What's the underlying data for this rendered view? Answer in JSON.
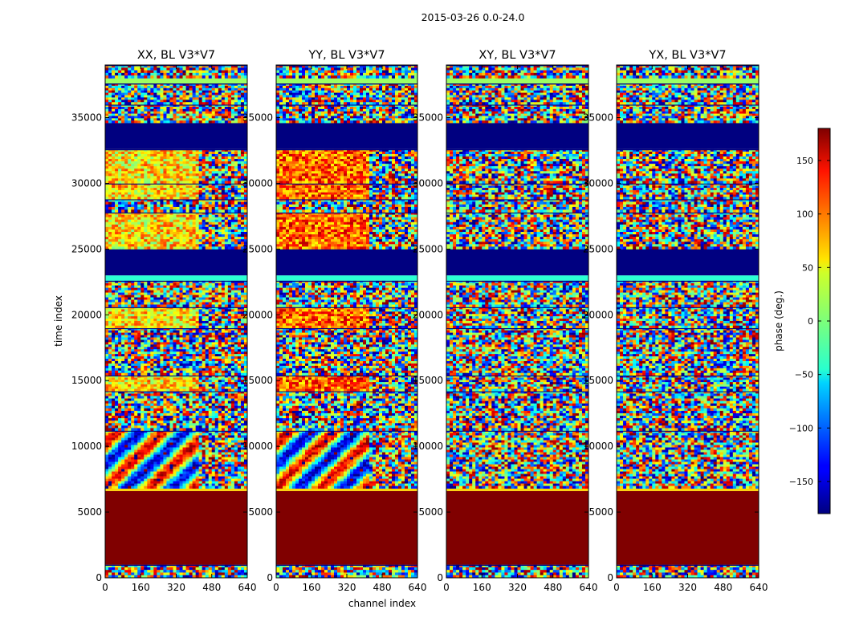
{
  "figure": {
    "title": "2015-03-26 0.0-24.0"
  },
  "chart_data": {
    "type": "heatmap",
    "suptitle": "2015-03-26 0.0-24.0",
    "xlabel": "channel index",
    "ylabel": "time index",
    "xlim": [
      0,
      640
    ],
    "ylim": [
      0,
      39000
    ],
    "xticks": [
      0,
      160,
      320,
      480,
      640
    ],
    "yticks": [
      0,
      5000,
      10000,
      15000,
      20000,
      25000,
      30000,
      35000
    ],
    "xtick_labels": [
      "0",
      "160",
      "320",
      "480",
      "640"
    ],
    "ytick_labels": [
      "0",
      "5000",
      "10000",
      "15000",
      "20000",
      "25000",
      "30000",
      "35000"
    ],
    "ytick_labels_inner": [
      "0",
      "5000",
      "10000",
      "15000",
      "20000",
      "25000",
      "30000",
      "35000"
    ],
    "panels": [
      {
        "title": "XX, BL V3*V7",
        "polarization": "XX",
        "baseline": "V3*V7"
      },
      {
        "title": "YY, BL V3*V7",
        "polarization": "YY",
        "baseline": "V3*V7"
      },
      {
        "title": "XY, BL V3*V7",
        "polarization": "XY",
        "baseline": "V3*V7"
      },
      {
        "title": "YX, BL V3*V7",
        "polarization": "YX",
        "baseline": "V3*V7"
      }
    ],
    "colorbar": {
      "label": "phase (deg.)",
      "range": [
        -180,
        180
      ],
      "colormap": "jet",
      "ticks": [
        -150,
        -100,
        -50,
        0,
        50,
        100,
        150
      ],
      "tick_labels": [
        "−150",
        "−100",
        "−50",
        "0",
        "50",
        "100",
        "150"
      ]
    },
    "bands": [
      {
        "t0": 0,
        "t1": 1000,
        "kind": "noise"
      },
      {
        "t0": 1000,
        "t1": 6600,
        "kind": "flag",
        "phase": 180
      },
      {
        "t0": 6600,
        "t1": 6800,
        "kind": "edge"
      },
      {
        "t0": 6800,
        "t1": 11200,
        "kind": "wave"
      },
      {
        "t0": 11200,
        "t1": 14200,
        "kind": "noise"
      },
      {
        "t0": 14200,
        "t1": 15400,
        "kind": "warm"
      },
      {
        "t0": 15400,
        "t1": 19000,
        "kind": "noise"
      },
      {
        "t0": 19000,
        "t1": 20600,
        "kind": "warm"
      },
      {
        "t0": 20600,
        "t1": 22600,
        "kind": "noise"
      },
      {
        "t0": 22600,
        "t1": 23000,
        "kind": "stripe"
      },
      {
        "t0": 23000,
        "t1": 25000,
        "kind": "flag",
        "phase": -180
      },
      {
        "t0": 25000,
        "t1": 27800,
        "kind": "warm"
      },
      {
        "t0": 27800,
        "t1": 28800,
        "kind": "noise"
      },
      {
        "t0": 28800,
        "t1": 30000,
        "kind": "warm"
      },
      {
        "t0": 30000,
        "t1": 32600,
        "kind": "warm"
      },
      {
        "t0": 32600,
        "t1": 34600,
        "kind": "flag",
        "phase": -180
      },
      {
        "t0": 34600,
        "t1": 36000,
        "kind": "noise"
      },
      {
        "t0": 36000,
        "t1": 37600,
        "kind": "noise"
      },
      {
        "t0": 37600,
        "t1": 38000,
        "kind": "green"
      },
      {
        "t0": 38000,
        "t1": 39000,
        "kind": "noise"
      }
    ]
  }
}
